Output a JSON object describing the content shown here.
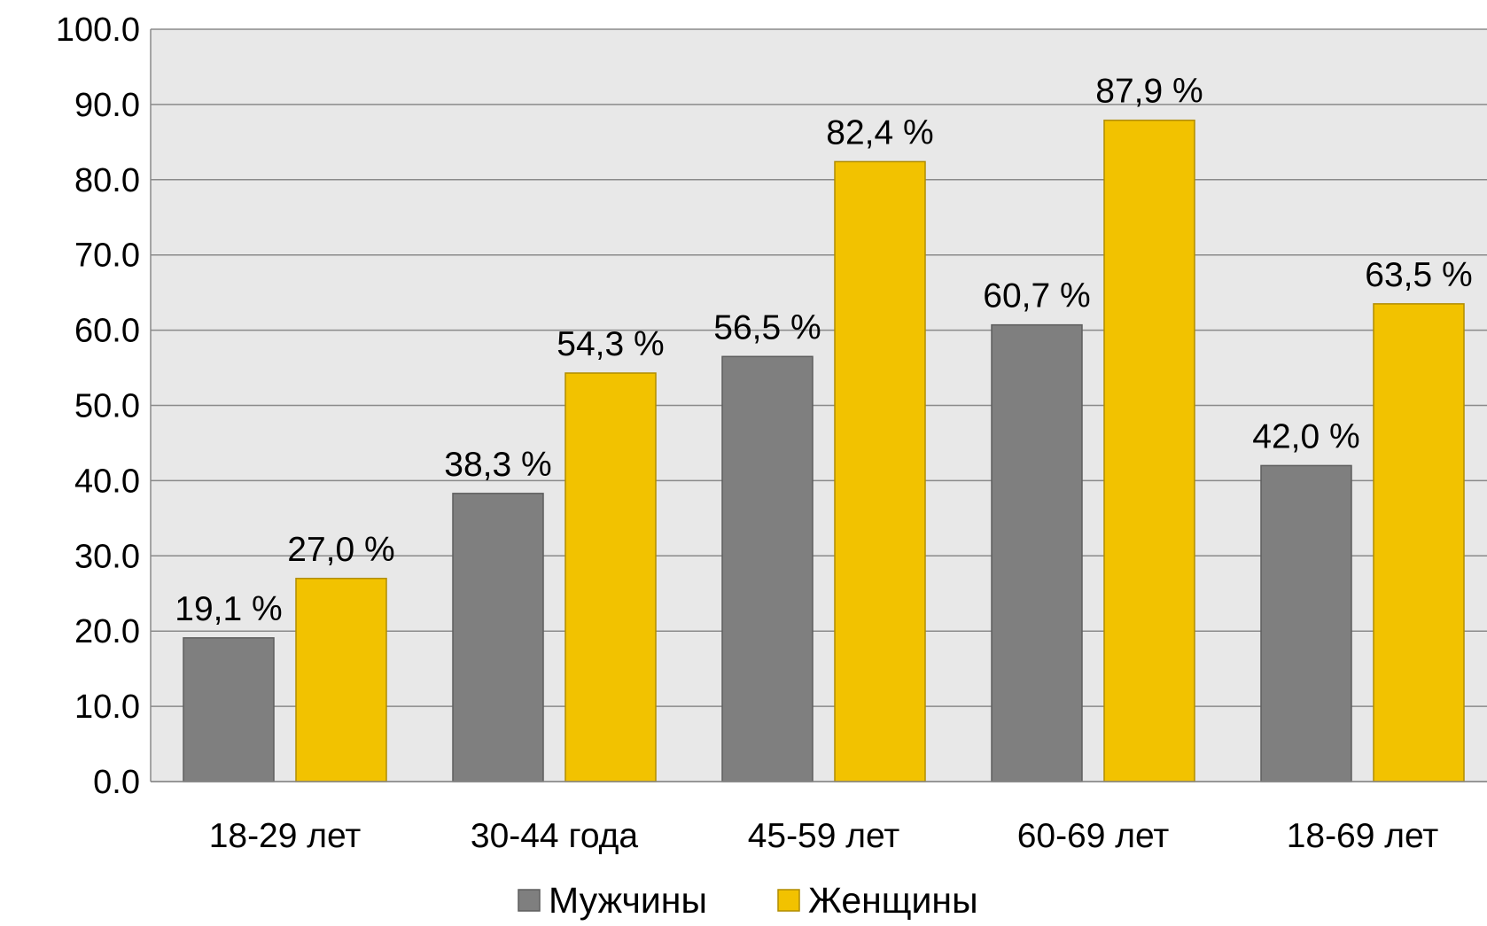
{
  "chart_data": {
    "type": "bar",
    "categories": [
      "18-29 лет",
      "30-44 года",
      "45-59 лет",
      "60-69 лет",
      "18-69 лет"
    ],
    "series": [
      {
        "name": "Мужчины",
        "color": "#7f7f7f",
        "values": [
          19.1,
          38.3,
          56.5,
          60.7,
          42.0
        ],
        "labels": [
          "19,1 %",
          "38,3 %",
          "56,5 %",
          "60,7 %",
          "42,0 %"
        ]
      },
      {
        "name": "Женщины",
        "color": "#f2c200",
        "values": [
          27.0,
          54.3,
          82.4,
          87.9,
          63.5
        ],
        "labels": [
          "27,0 %",
          "54,3 %",
          "82,4 %",
          "87,9 %",
          "63,5 %"
        ]
      }
    ],
    "ylim": [
      0,
      100
    ],
    "yticks": [
      "0.0",
      "10.0",
      "20.0",
      "30.0",
      "40.0",
      "50.0",
      "60.0",
      "70.0",
      "80.0",
      "90.0",
      "100.0"
    ],
    "title": "",
    "xlabel": "",
    "ylabel": "",
    "grid": true,
    "legend_position": "bottom",
    "plot_background": "#e8e8e8",
    "gridline_color": "#8a8a8a"
  }
}
